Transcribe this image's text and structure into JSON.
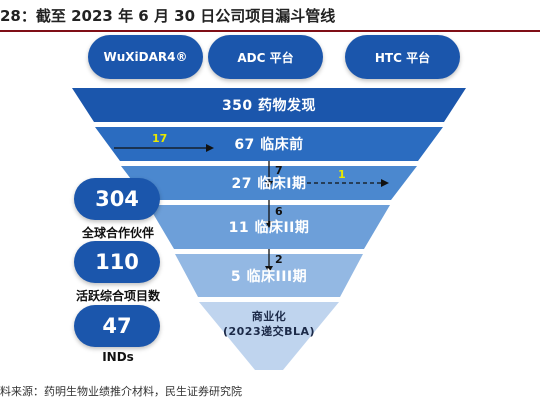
{
  "title": "28：截至 2023 年 6 月 30 日公司项目漏斗管线",
  "platforms": [
    "WuXiDAR4®",
    "ADC 平台",
    "HTC 平台"
  ],
  "stages": [
    {
      "label": "350 药物发现"
    },
    {
      "label": "67 临床前"
    },
    {
      "label": "27 临床I期"
    },
    {
      "label": "11 临床II期"
    },
    {
      "label": "5 临床III期"
    },
    {
      "label_line1": "商业化",
      "label_line2": "(2023递交BLA)"
    }
  ],
  "transitions": {
    "entry_preclinical": "17",
    "exit_phase1": "1",
    "to_phase1": "7",
    "to_phase2": "6",
    "to_phase3": "2"
  },
  "stats": [
    {
      "value": "304",
      "label": "全球合作伙伴"
    },
    {
      "value": "110",
      "label": "活跃综合项目数"
    },
    {
      "value": "47",
      "label": "INDs"
    }
  ],
  "source": "料来源：药明生物业绩推介材料，民生证券研究院",
  "colors": {
    "band1": "#1b56ac",
    "band2": "#2b6cc0",
    "band3": "#4b88cf",
    "band4": "#6d9fd9",
    "band5": "#93b8e3",
    "band6": "#bfd4ee",
    "title_rule": "#7f0e16",
    "highlight_number": "#e8e800"
  }
}
